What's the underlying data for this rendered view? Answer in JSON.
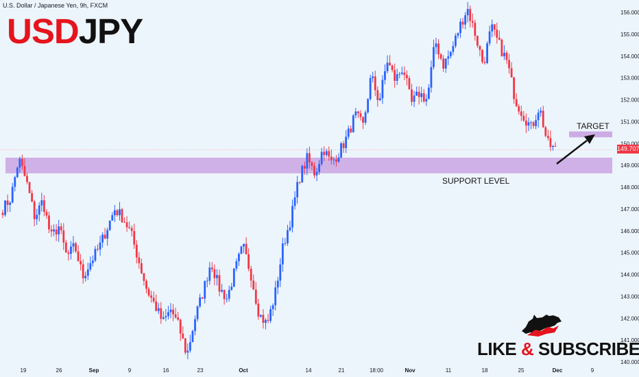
{
  "header": {
    "symbol_line": "U.S. Dollar / Japanese Yen, 9h, FXCM",
    "brand_usd": "USD",
    "brand_jpy": "JPY"
  },
  "annotations": {
    "target_label": "TARGET",
    "support_label": "SUPPORT LEVEL"
  },
  "cta": {
    "like": "LIKE",
    "amp": "&",
    "subscribe": "SUBSCRIBE",
    "logo_icon": "bull-bear-icon"
  },
  "colors": {
    "up": "#2962ff",
    "down": "#f23645",
    "zone": "#c9a4e3",
    "background": "#edf5fc",
    "brand_red": "#e5141d"
  },
  "chart_data": {
    "type": "candlestick",
    "symbol": "USDJPY",
    "timeframe": "9h",
    "source": "FXCM",
    "current_price": "149.707",
    "y_ticks": [
      "156.000",
      "155.000",
      "154.000",
      "153.000",
      "152.000",
      "151.000",
      "150.000",
      "149.000",
      "148.000",
      "147.000",
      "146.000",
      "145.000",
      "144.000",
      "143.000",
      "142.000",
      "141.000",
      "140.000"
    ],
    "y_range": [
      139.9,
      156.3
    ],
    "x_ticks": [
      "19",
      "26",
      "Sep",
      "9",
      "16",
      "23",
      "Oct",
      "14",
      "21",
      "18:00",
      "Nov",
      "11",
      "18",
      "25",
      "Dec",
      "9"
    ],
    "support_zone": [
      148.63,
      149.35
    ],
    "target_zone": [
      150.28,
      150.55
    ],
    "price_path": [
      [
        147.0,
        147.5
      ],
      [
        149.3,
        148.2
      ],
      [
        146.6,
        147.4
      ],
      [
        145.7,
        146.2
      ],
      [
        144.8,
        145.3
      ],
      [
        143.9,
        144.6
      ],
      [
        145.2,
        146.1
      ],
      [
        147.0,
        146.6
      ],
      [
        145.9,
        144.6
      ],
      [
        143.3,
        142.6
      ],
      [
        141.8,
        142.4
      ],
      [
        141.6,
        140.3
      ],
      [
        142.0,
        143.2
      ],
      [
        144.6,
        143.4
      ],
      [
        142.9,
        144.2
      ],
      [
        145.3,
        144.0
      ],
      [
        142.2,
        141.7
      ],
      [
        143.1,
        145.3
      ],
      [
        146.6,
        148.4
      ],
      [
        149.3,
        148.6
      ],
      [
        149.8,
        149.1
      ],
      [
        149.6,
        150.3
      ],
      [
        151.3,
        150.8
      ],
      [
        153.1,
        151.9
      ],
      [
        153.8,
        152.9
      ],
      [
        153.5,
        151.8
      ],
      [
        152.3,
        152.0
      ],
      [
        154.7,
        153.6
      ],
      [
        154.2,
        155.3
      ],
      [
        156.2,
        155.0
      ],
      [
        153.6,
        155.3
      ],
      [
        154.5,
        153.7
      ],
      [
        152.0,
        151.3
      ],
      [
        150.7,
        151.7
      ],
      [
        150.0,
        149.7
      ]
    ]
  }
}
